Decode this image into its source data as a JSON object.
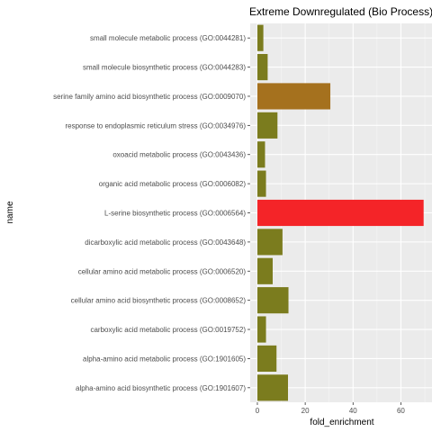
{
  "chart_data": {
    "type": "bar",
    "orientation": "horizontal",
    "title": "Extreme Downregulated (Bio Process)",
    "xlabel": "fold_enrichment",
    "ylabel": "name",
    "xlim": [
      -3,
      73
    ],
    "xticks": [
      0,
      20,
      40,
      60
    ],
    "grid": true,
    "legend": "none",
    "categories": [
      "small molecule metabolic process (GO:0044281)",
      "small molecule biosynthetic process (GO:0044283)",
      "serine family amino acid biosynthetic process (GO:0009070)",
      "response to endoplasmic reticulum stress (GO:0034976)",
      "oxoacid metabolic process (GO:0043436)",
      "organic acid metabolic process (GO:0006082)",
      "L-serine biosynthetic process (GO:0006564)",
      "dicarboxylic acid metabolic process (GO:0043648)",
      "cellular amino acid metabolic process (GO:0006520)",
      "cellular amino acid biosynthetic process (GO:0008652)",
      "carboxylic acid metabolic process (GO:0019752)",
      "alpha-amino acid metabolic process (GO:1901605)",
      "alpha-amino acid biosynthetic process (GO:1901607)"
    ],
    "values": [
      2.5,
      4.3,
      30.5,
      8.4,
      3.2,
      3.6,
      69.5,
      10.5,
      6.4,
      13.0,
      3.6,
      8.0,
      12.8
    ],
    "colors": [
      "#7b7c1e",
      "#7b7c1e",
      "#a5711e",
      "#7b7c1e",
      "#7b7c1e",
      "#7b7c1e",
      "#f42428",
      "#7b7c1e",
      "#7b7c1e",
      "#7b7c1e",
      "#7b7c1e",
      "#7b7c1e",
      "#7b7c1e"
    ]
  }
}
